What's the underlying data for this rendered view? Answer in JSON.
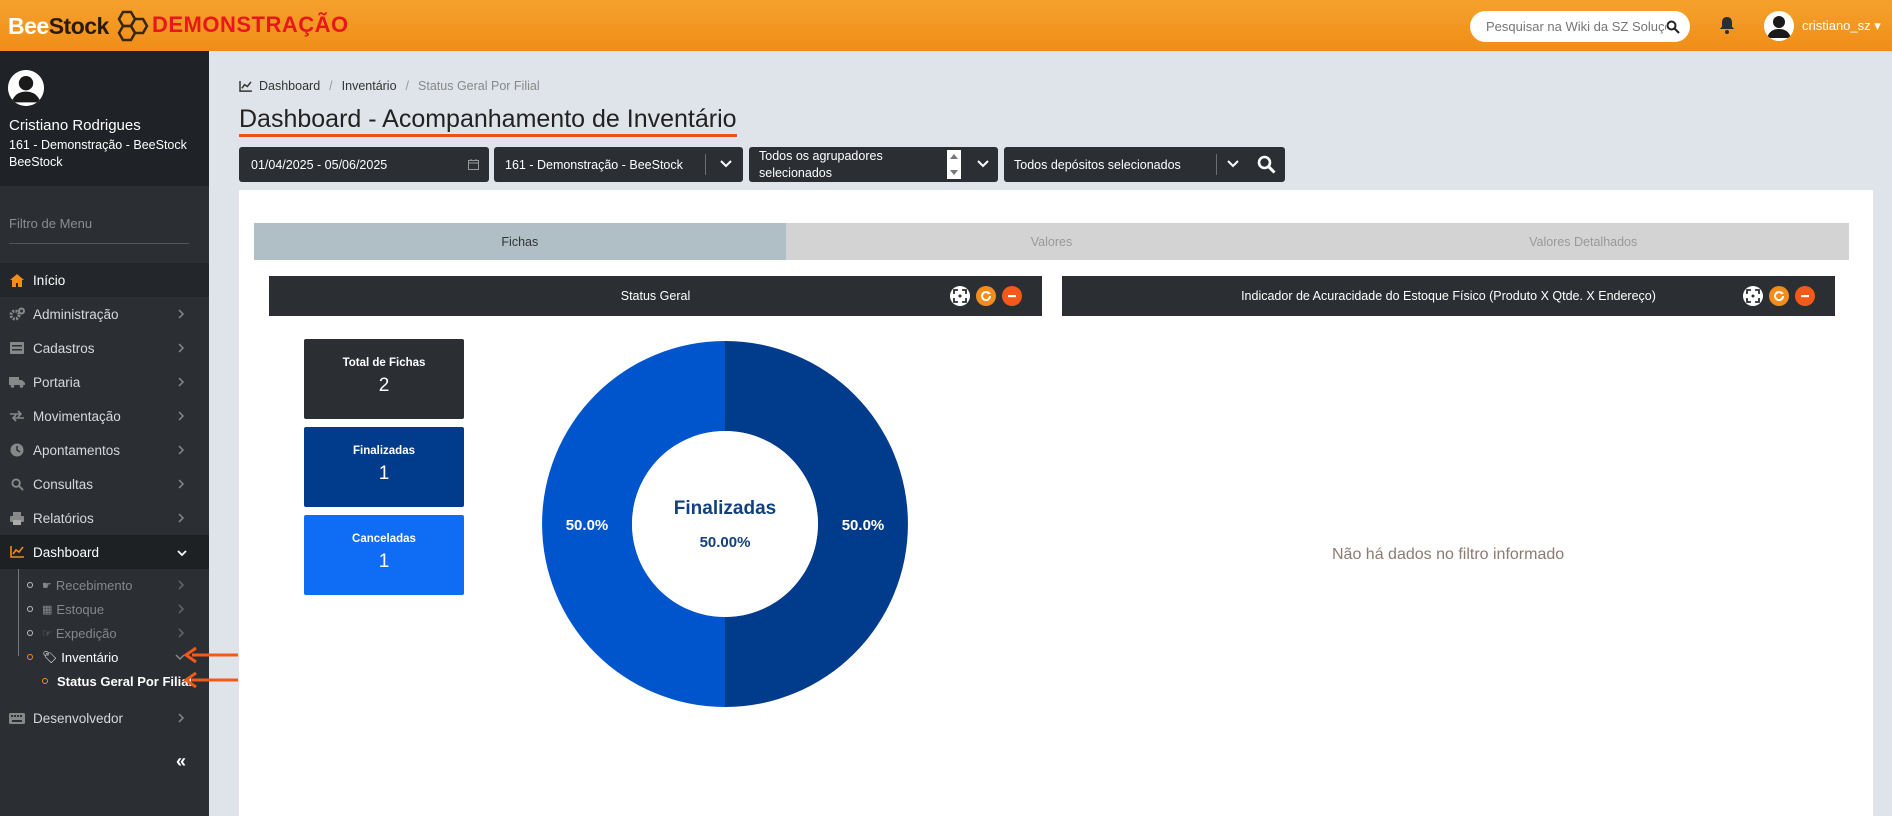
{
  "app": {
    "logo_bee": "Bee",
    "logo_stock": "Stock",
    "env_label": "DEMONSTRAÇÃO",
    "search_placeholder": "Pesquisar na Wiki da SZ Soluções",
    "user_menu": "cristiano_sz"
  },
  "profile": {
    "name": "Cristiano Rodrigues",
    "org": "161 - Demonstração - BeeStock BeeStock"
  },
  "sidebar": {
    "filter_placeholder": "Filtro de Menu",
    "items": [
      {
        "label": "Início",
        "icon": "home-icon"
      },
      {
        "label": "Administração",
        "icon": "cogs-icon"
      },
      {
        "label": "Cadastros",
        "icon": "list-icon"
      },
      {
        "label": "Portaria",
        "icon": "truck-icon"
      },
      {
        "label": "Movimentação",
        "icon": "exchange-icon"
      },
      {
        "label": "Apontamentos",
        "icon": "clock-icon"
      },
      {
        "label": "Consultas",
        "icon": "search-icon"
      },
      {
        "label": "Relatórios",
        "icon": "print-icon"
      },
      {
        "label": "Dashboard",
        "icon": "chart-line-icon"
      },
      {
        "label": "Desenvolvedor",
        "icon": "keyboard-icon"
      }
    ],
    "dashboard_sub": [
      {
        "label": "Recebimento",
        "icon": "hand-icon"
      },
      {
        "label": "Estoque",
        "icon": "table-icon"
      },
      {
        "label": "Expedição",
        "icon": "hand-right-icon"
      },
      {
        "label": "Inventário",
        "icon": "tags-icon"
      }
    ],
    "inventario_sub": [
      {
        "label": "Status Geral Por Filial"
      }
    ],
    "collapse": "«"
  },
  "breadcrumb": [
    "Dashboard",
    "Inventário",
    "Status Geral Por Filial"
  ],
  "page_title": "Dashboard - Acompanhamento de Inventário",
  "filters": {
    "date_range": "01/04/2025 - 05/06/2025",
    "branch": "161 - Demonstração - BeeStock",
    "groupers": "Todos os agrupadores selecionados",
    "depots": "Todos depósitos selecionados"
  },
  "tabs": [
    "Fichas",
    "Valores",
    "Valores Detalhados"
  ],
  "cards": {
    "left_title": "Status Geral",
    "right_title": "Indicador de Acuracidade do Estoque Físico (Produto X Qtde. X Endereço)",
    "no_data": "Não há dados no filtro informado"
  },
  "stats": [
    {
      "label": "Total de Fichas",
      "value": "2"
    },
    {
      "label": "Finalizadas",
      "value": "1"
    },
    {
      "label": "Canceladas",
      "value": "1"
    }
  ],
  "donut": {
    "center_label": "Finalizadas",
    "center_value": "50.00%",
    "slices": [
      {
        "name": "Finalizadas",
        "value": 50.0,
        "label": "50.0%",
        "color": "#003b8c"
      },
      {
        "name": "Canceladas",
        "value": 50.0,
        "label": "50.0%",
        "color": "#0055cc"
      }
    ]
  },
  "colors": {
    "accent": "#f28c1b",
    "dark": "#2b2e33",
    "title_underline": "#e8531a"
  }
}
